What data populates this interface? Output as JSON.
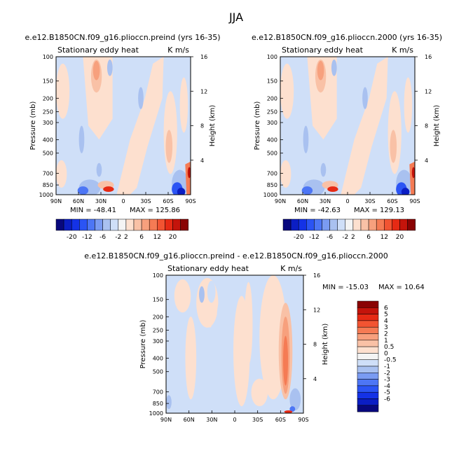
{
  "page_title": "JJA",
  "chart_data": [
    {
      "type": "contour",
      "title": "e.e12.B1850CN.f09_g16.plioccn.preind (yrs 16-35)",
      "field_label": "Stationary eddy heat",
      "units_label": "K m/s",
      "ylabel": "Pressure (mb)",
      "y2label": "Height (km)",
      "x_ticks": [
        "90N",
        "60N",
        "30N",
        "0",
        "30S",
        "60S",
        "90S"
      ],
      "x_values": [
        90,
        60,
        30,
        0,
        -30,
        -60,
        -90
      ],
      "y_ticks": [
        100,
        150,
        200,
        250,
        300,
        400,
        500,
        700,
        850,
        1000
      ],
      "y2_ticks": [
        16,
        12,
        8,
        4
      ],
      "ylim": [
        1000,
        100
      ],
      "min_label": "MIN = -48.41",
      "max_label": "MAX = 125.86",
      "min": -48.41,
      "max": 125.86
    },
    {
      "type": "contour",
      "title": "e.e12.B1850CN.f09_g16.plioccn.2000 (yrs 16-35)",
      "field_label": "Stationary eddy heat",
      "units_label": "K m/s",
      "ylabel": "Pressure (mb)",
      "y2label": "Height (km)",
      "x_ticks": [
        "90N",
        "60N",
        "30N",
        "0",
        "30S",
        "60S",
        "90S"
      ],
      "x_values": [
        90,
        60,
        30,
        0,
        -30,
        -60,
        -90
      ],
      "y_ticks": [
        100,
        150,
        200,
        250,
        300,
        400,
        500,
        700,
        850,
        1000
      ],
      "y2_ticks": [
        16,
        12,
        8,
        4
      ],
      "ylim": [
        1000,
        100
      ],
      "min_label": "MIN = -42.63",
      "max_label": "MAX = 129.13",
      "min": -42.63,
      "max": 129.13
    },
    {
      "type": "contour",
      "title": "e.e12.B1850CN.f09_g16.plioccn.preind - e.e12.B1850CN.f09_g16.plioccn.2000",
      "field_label": "Stationary eddy heat",
      "units_label": "K m/s",
      "ylabel": "Pressure (mb)",
      "y2label": "Height (km)",
      "x_ticks": [
        "90N",
        "60N",
        "30N",
        "0",
        "30S",
        "60S",
        "90S"
      ],
      "x_values": [
        90,
        60,
        30,
        0,
        -30,
        -60,
        -90
      ],
      "y_ticks": [
        100,
        150,
        200,
        250,
        300,
        400,
        500,
        700,
        850,
        1000
      ],
      "y2_ticks": [
        16,
        12,
        8,
        4
      ],
      "ylim": [
        1000,
        100
      ],
      "min_label": "MIN = -15.03",
      "max_label": "MAX =  10.64",
      "min": -15.03,
      "max": 10.64
    }
  ],
  "colorbar_top": {
    "orientation": "horizontal",
    "colors": [
      "#08087e",
      "#0b1ec4",
      "#1432e6",
      "#2b54f4",
      "#4d76f5",
      "#7a9bf2",
      "#a9c1f0",
      "#cfdff8",
      "#f4f4f4",
      "#fde0cf",
      "#f9c1a6",
      "#f7a07d",
      "#f57b54",
      "#f25432",
      "#e62a14",
      "#c4140b",
      "#8a0303"
    ],
    "labels": [
      "-20",
      "-12",
      "-6",
      "-2",
      "2",
      "6",
      "12",
      "20"
    ]
  },
  "colorbar_diff": {
    "orientation": "vertical",
    "colors": [
      "#8a0303",
      "#c4140b",
      "#e62a14",
      "#f25432",
      "#f57b54",
      "#f7a07d",
      "#f9c1a6",
      "#fde0cf",
      "#f4f4f4",
      "#cfdff8",
      "#a9c1f0",
      "#7a9bf2",
      "#4d76f5",
      "#2b54f4",
      "#1432e6",
      "#0b1ec4",
      "#08087e"
    ],
    "labels": [
      "6",
      "5",
      "4",
      "3",
      "2",
      "1",
      "0.5",
      "0",
      "-0.5",
      "-1",
      "-2",
      "-3",
      "-4",
      "-5",
      "-6"
    ]
  }
}
